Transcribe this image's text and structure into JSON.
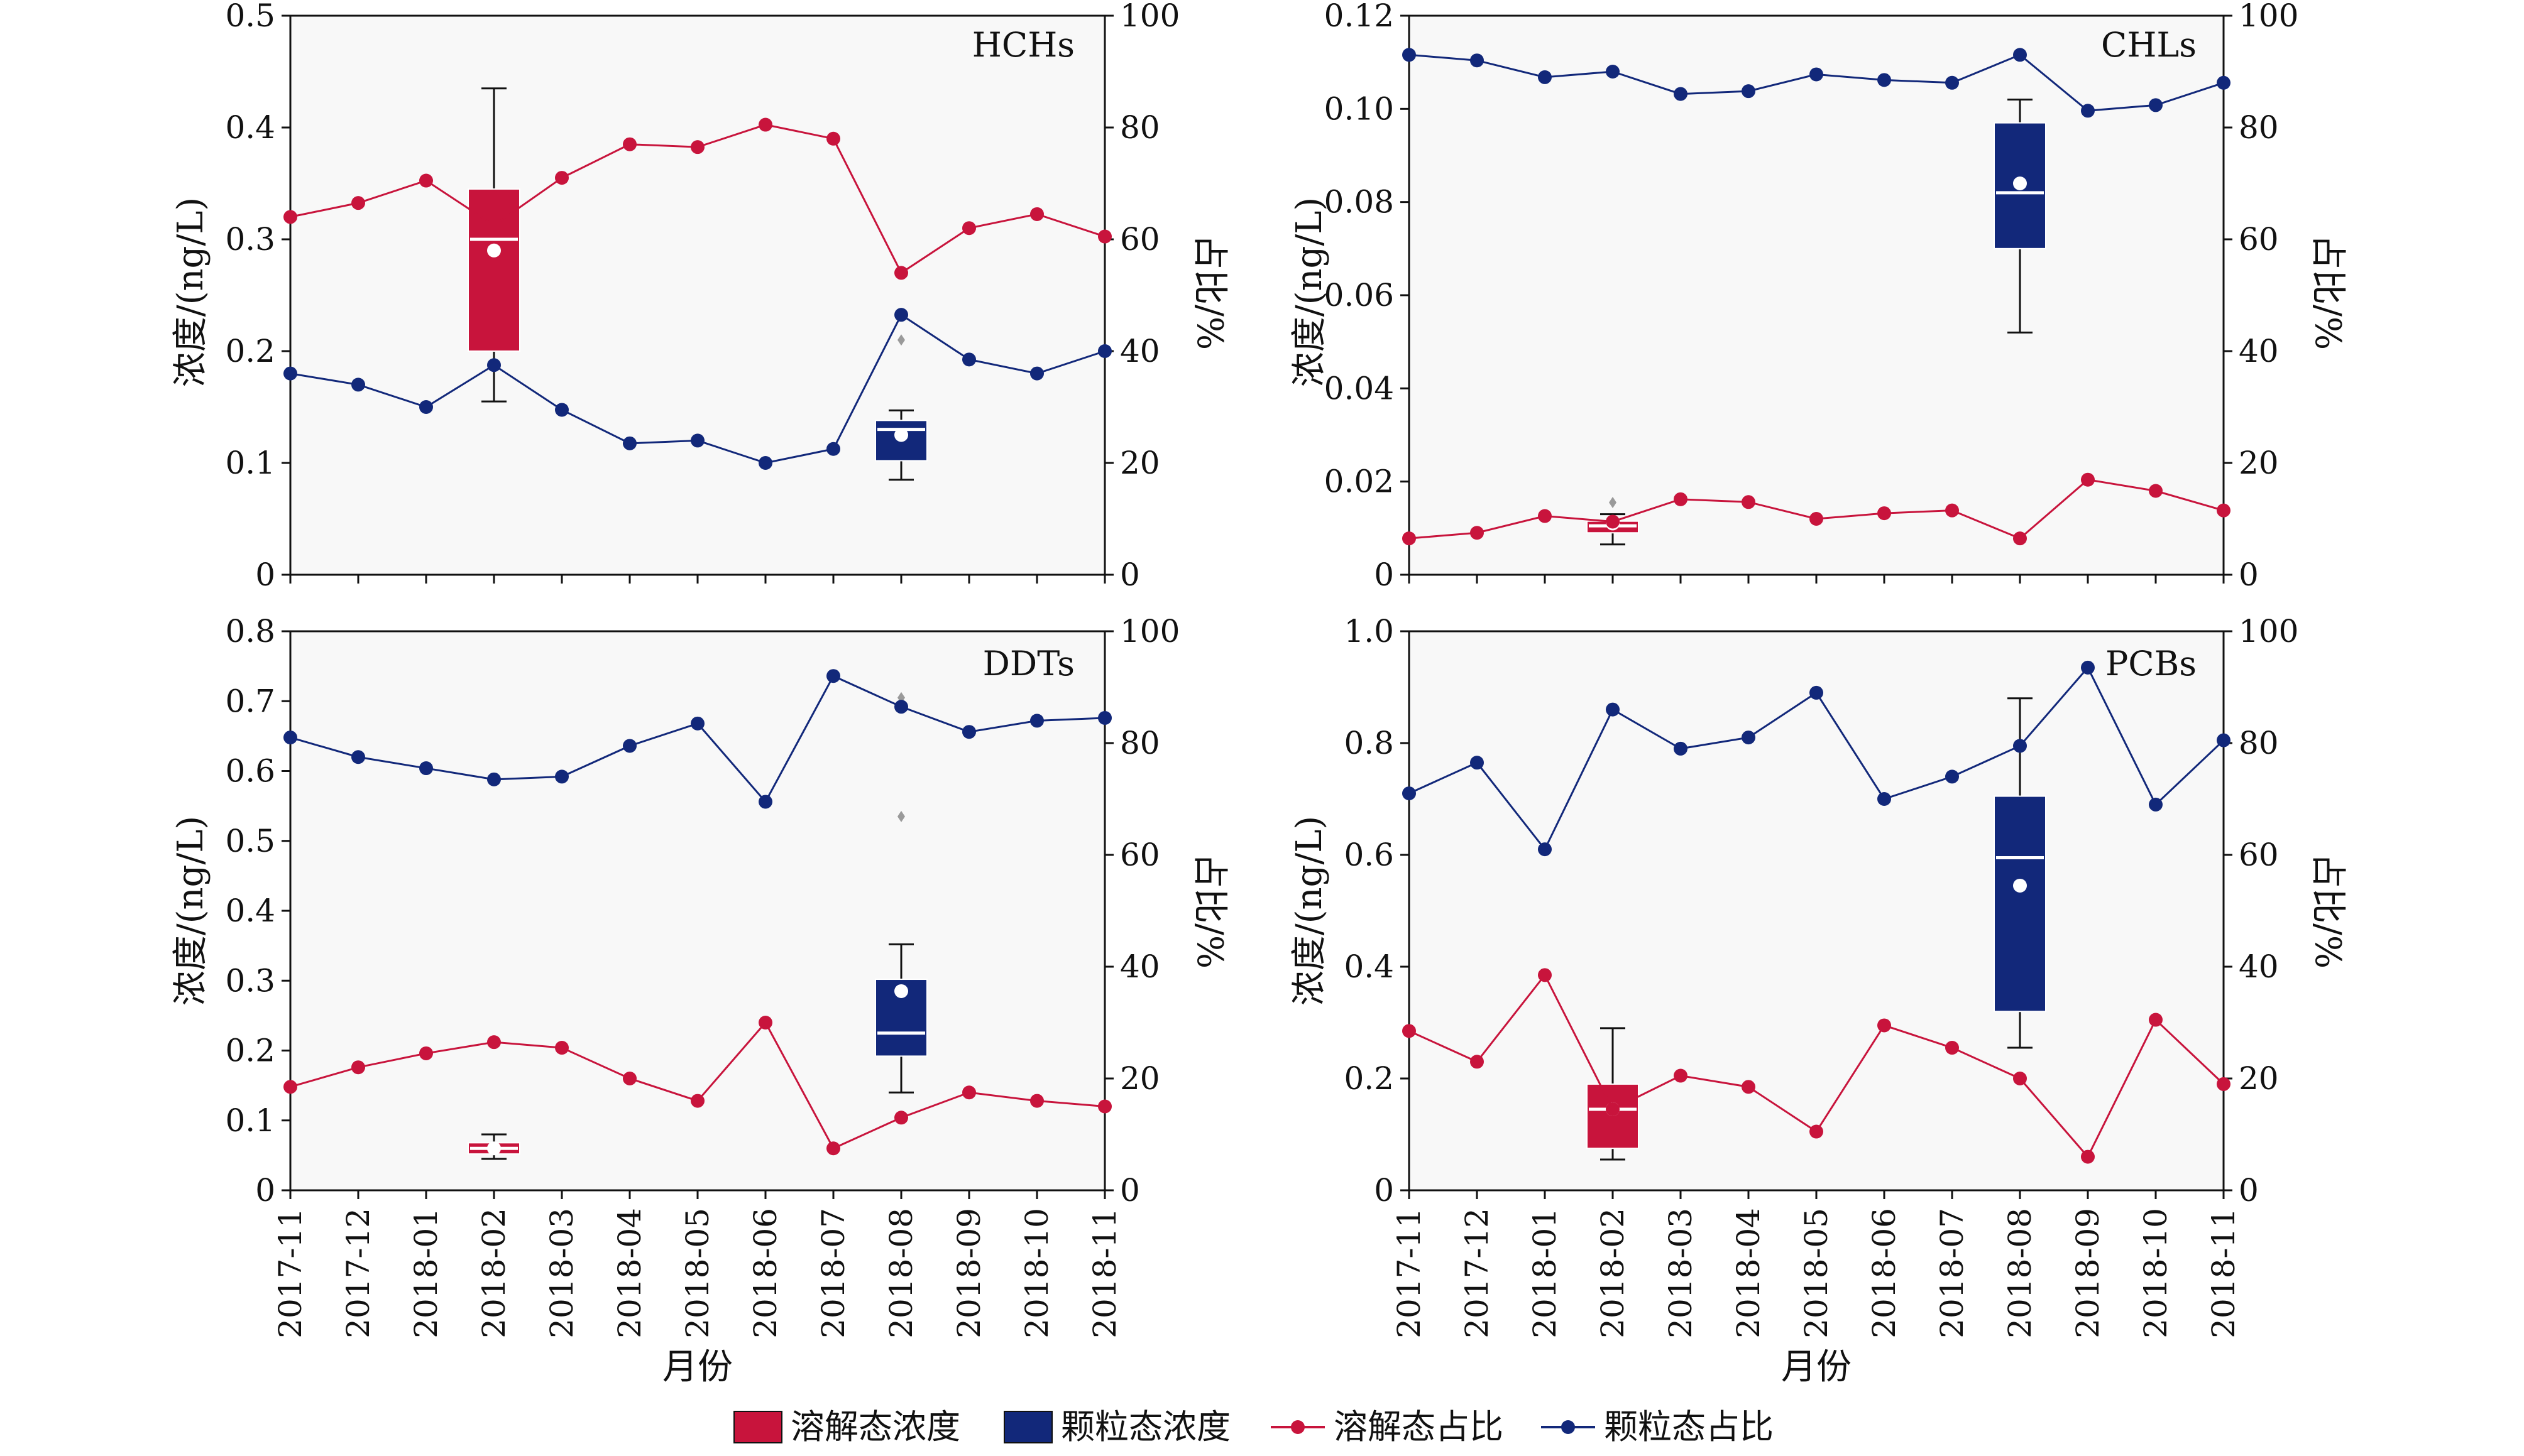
{
  "colors": {
    "dissolved": "#c8143c",
    "particulate": "#12287a",
    "plot_bg": "#f8f8f8",
    "mean_marker": "#ffffff",
    "outlier": "#9a9a9a"
  },
  "x_axis": {
    "label": "月份",
    "months": [
      "2017-11",
      "2017-12",
      "2018-01",
      "2018-02",
      "2018-03",
      "2018-04",
      "2018-05",
      "2018-06",
      "2018-07",
      "2018-08",
      "2018-09",
      "2018-10",
      "2018-11"
    ]
  },
  "legend": {
    "dissolved_conc": "溶解态浓度",
    "particulate_conc": "颗粒态浓度",
    "dissolved_ratio": "溶解态占比",
    "particulate_ratio": "颗粒态占比"
  },
  "chart_data": [
    {
      "type": "line",
      "title": "HCHs",
      "ylabel_left": "浓度/(ng/L)",
      "ylabel_right": "占比/%",
      "left_ticks": [
        "0",
        "0.1",
        "0.2",
        "0.3",
        "0.4",
        "0.5"
      ],
      "ylim_left": [
        0,
        0.5
      ],
      "right_ticks": [
        "0",
        "20",
        "40",
        "60",
        "80",
        "100"
      ],
      "ylim_right": [
        0,
        100
      ],
      "series": [
        {
          "values": [
            64,
            66.5,
            70.5,
            62.5,
            71,
            77,
            76.5,
            80.5,
            78,
            54,
            62,
            64.5,
            60.5
          ]
        },
        {
          "values": [
            36,
            34,
            30,
            37.5,
            29.5,
            23.5,
            24,
            20,
            22.5,
            46.5,
            38.5,
            36,
            40
          ]
        }
      ],
      "boxes": [
        {
          "series": "dissolved",
          "month_index": 3,
          "whisker_low": 0.155,
          "q1": 0.2,
          "median": 0.3,
          "q3": 0.345,
          "whisker_high": 0.435,
          "mean": 0.29,
          "outliers": []
        },
        {
          "series": "particulate",
          "month_index": 9,
          "whisker_low": 0.085,
          "q1": 0.102,
          "median": 0.13,
          "q3": 0.138,
          "whisker_high": 0.147,
          "mean": 0.125,
          "outliers": [
            0.21
          ]
        }
      ]
    },
    {
      "type": "line",
      "title": "CHLs",
      "ylabel_left": "浓度/(ng/L)",
      "ylabel_right": "占比/%",
      "left_ticks": [
        "0",
        "0.02",
        "0.04",
        "0.06",
        "0.08",
        "0.10",
        "0.12"
      ],
      "ylim_left": [
        0,
        0.12
      ],
      "right_ticks": [
        "0",
        "20",
        "40",
        "60",
        "80",
        "100"
      ],
      "ylim_right": [
        0,
        100
      ],
      "series": [
        {
          "values": [
            6.5,
            7.5,
            10.5,
            9.5,
            13.5,
            13,
            10,
            11,
            11.5,
            6.5,
            17,
            15,
            11.5
          ]
        },
        {
          "values": [
            93,
            92,
            89,
            90,
            86,
            86.5,
            89.5,
            88.5,
            88,
            93,
            83,
            84,
            88
          ]
        }
      ],
      "boxes": [
        {
          "series": "dissolved",
          "month_index": 3,
          "whisker_low": 0.0065,
          "q1": 0.009,
          "median": 0.0105,
          "q3": 0.0115,
          "whisker_high": 0.013,
          "mean": 0.011,
          "outliers": [
            0.0155
          ]
        },
        {
          "series": "particulate",
          "month_index": 9,
          "whisker_low": 0.052,
          "q1": 0.07,
          "median": 0.082,
          "q3": 0.097,
          "whisker_high": 0.102,
          "mean": 0.084,
          "outliers": []
        }
      ]
    },
    {
      "type": "line",
      "title": "DDTs",
      "ylabel_left": "浓度/(ng/L)",
      "ylabel_right": "占比/%",
      "left_ticks": [
        "0",
        "0.1",
        "0.2",
        "0.3",
        "0.4",
        "0.5",
        "0.6",
        "0.7",
        "0.8"
      ],
      "ylim_left": [
        0,
        0.8
      ],
      "right_ticks": [
        "0",
        "20",
        "40",
        "60",
        "80",
        "100"
      ],
      "ylim_right": [
        0,
        100
      ],
      "series": [
        {
          "values": [
            18.5,
            22,
            24.5,
            26.5,
            25.5,
            20,
            16,
            30,
            7.5,
            13,
            17.5,
            16,
            15
          ]
        },
        {
          "values": [
            81,
            77.5,
            75.5,
            73.5,
            74,
            79.5,
            83.5,
            69.5,
            92,
            86.5,
            82,
            84,
            84.5
          ]
        }
      ],
      "boxes": [
        {
          "series": "dissolved",
          "month_index": 3,
          "whisker_low": 0.045,
          "q1": 0.052,
          "median": 0.06,
          "q3": 0.068,
          "whisker_high": 0.08,
          "mean": 0.06,
          "outliers": []
        },
        {
          "series": "particulate",
          "month_index": 9,
          "whisker_low": 0.14,
          "q1": 0.192,
          "median": 0.225,
          "q3": 0.302,
          "whisker_high": 0.352,
          "mean": 0.285,
          "outliers": [
            0.535,
            0.705
          ]
        }
      ]
    },
    {
      "type": "line",
      "title": "PCBs",
      "ylabel_left": "浓度/(ng/L)",
      "ylabel_right": "占比/%",
      "left_ticks": [
        "0",
        "0.2",
        "0.4",
        "0.6",
        "0.8",
        "1.0"
      ],
      "ylim_left": [
        0,
        1.0
      ],
      "right_ticks": [
        "0",
        "20",
        "40",
        "60",
        "80",
        "100"
      ],
      "ylim_right": [
        0,
        100
      ],
      "series": [
        {
          "values": [
            28.5,
            23,
            38.5,
            14.5,
            20.5,
            18.5,
            10.5,
            29.5,
            25.5,
            20,
            6,
            30.5,
            19
          ]
        },
        {
          "values": [
            71,
            76.5,
            61,
            86,
            79,
            81,
            89,
            70,
            74,
            79.5,
            93.5,
            69,
            80.5
          ]
        }
      ],
      "boxes": [
        {
          "series": "dissolved",
          "month_index": 3,
          "whisker_low": 0.055,
          "q1": 0.075,
          "median": 0.145,
          "q3": 0.19,
          "whisker_high": 0.29,
          "mean": 0.145,
          "outliers": []
        },
        {
          "series": "particulate",
          "month_index": 9,
          "whisker_low": 0.255,
          "q1": 0.32,
          "median": 0.595,
          "q3": 0.705,
          "whisker_high": 0.88,
          "mean": 0.545,
          "outliers": []
        }
      ]
    }
  ]
}
